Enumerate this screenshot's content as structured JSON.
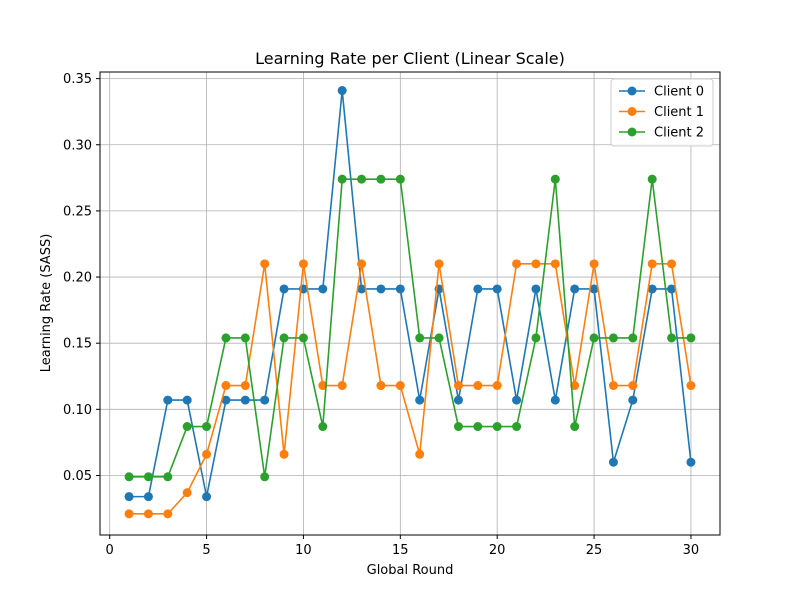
{
  "chart_data": {
    "type": "line",
    "title": "Learning Rate per Client (Linear Scale)",
    "xlabel": "Global Round",
    "ylabel": "Learning Rate (SASS)",
    "xlim": [
      -0.5,
      31.5
    ],
    "ylim": [
      0.005,
      0.355
    ],
    "xticks": [
      0,
      5,
      10,
      15,
      20,
      25,
      30
    ],
    "yticks": [
      0.05,
      0.1,
      0.15,
      0.2,
      0.25,
      0.3,
      0.35
    ],
    "ytick_labels": [
      "0.05",
      "0.10",
      "0.15",
      "0.20",
      "0.25",
      "0.30",
      "0.35"
    ],
    "grid": true,
    "legend_position": "top-right",
    "x": [
      1,
      2,
      3,
      4,
      5,
      6,
      7,
      8,
      9,
      10,
      11,
      12,
      13,
      14,
      15,
      16,
      17,
      18,
      19,
      20,
      21,
      22,
      23,
      24,
      25,
      26,
      27,
      28,
      29,
      30
    ],
    "series": [
      {
        "name": "Client 0",
        "color": "#1f77b4",
        "values": [
          0.034,
          0.034,
          0.107,
          0.107,
          0.034,
          0.107,
          0.107,
          0.107,
          0.191,
          0.191,
          0.191,
          0.341,
          0.191,
          0.191,
          0.191,
          0.107,
          0.191,
          0.107,
          0.191,
          0.191,
          0.107,
          0.191,
          0.107,
          0.191,
          0.191,
          0.06,
          0.107,
          0.191,
          0.191,
          0.06
        ]
      },
      {
        "name": "Client 1",
        "color": "#ff7f0e",
        "values": [
          0.021,
          0.021,
          0.021,
          0.037,
          0.066,
          0.118,
          0.118,
          0.21,
          0.066,
          0.21,
          0.118,
          0.118,
          0.21,
          0.118,
          0.118,
          0.066,
          0.21,
          0.118,
          0.118,
          0.118,
          0.21,
          0.21,
          0.21,
          0.118,
          0.21,
          0.118,
          0.118,
          0.21,
          0.21,
          0.118
        ]
      },
      {
        "name": "Client 2",
        "color": "#2ca02c",
        "values": [
          0.049,
          0.049,
          0.049,
          0.087,
          0.087,
          0.154,
          0.154,
          0.049,
          0.154,
          0.154,
          0.087,
          0.274,
          0.274,
          0.274,
          0.274,
          0.154,
          0.154,
          0.087,
          0.087,
          0.087,
          0.087,
          0.154,
          0.274,
          0.087,
          0.154,
          0.154,
          0.154,
          0.274,
          0.154,
          0.154
        ]
      }
    ]
  }
}
